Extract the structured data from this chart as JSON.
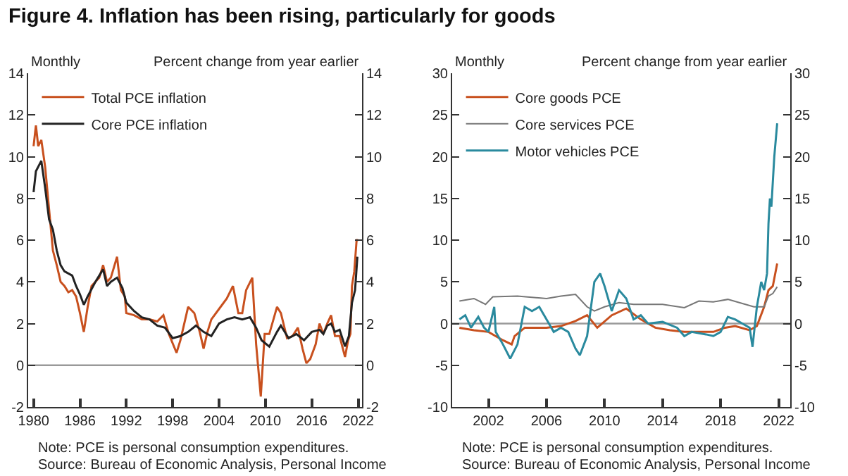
{
  "chart_data": [
    {
      "type": "line",
      "title": "Figure 4. Inflation has been rising, particularly for goods",
      "legend": "top left",
      "annotations": [
        "Monthly",
        "Percent change from year earlier",
        "Note: PCE is personal consumption expenditures.",
        "Source: Bureau of Economic Analysis, Personal Income"
      ],
      "xlim": [
        1979.3,
        2022.5
      ],
      "xticks": [
        1980,
        1986,
        1992,
        1998,
        2004,
        2010,
        2016,
        2022
      ],
      "ylim": [
        -2,
        14
      ],
      "yticks": [
        -2,
        0,
        2,
        4,
        6,
        8,
        10,
        12,
        14
      ],
      "y2lim": [
        -2,
        14
      ],
      "y2ticks": [
        -2,
        0,
        2,
        4,
        6,
        8,
        10,
        12,
        14
      ],
      "ref_lines": [
        {
          "axis": "y",
          "value": 0,
          "color": "#999999"
        }
      ],
      "series": [
        {
          "name": "Total PCE inflation",
          "color": "#c8501e",
          "x": [
            1980.0,
            1980.3,
            1980.6,
            1981,
            1981.5,
            1982,
            1982.5,
            1983,
            1983.5,
            1984,
            1984.5,
            1985,
            1985.5,
            1986,
            1986.5,
            1987,
            1987.5,
            1988,
            1988.5,
            1989,
            1989.5,
            1990,
            1990.8,
            1991.3,
            1991.8,
            1992,
            1993,
            1994,
            1995,
            1996,
            1996.8,
            1997.5,
            1998.5,
            1999,
            2000,
            2000.8,
            2001.5,
            2002,
            2002.5,
            2003,
            2004,
            2005,
            2005.8,
            2006.5,
            2007,
            2007.5,
            2008.3,
            2008.8,
            2009.4,
            2009.9,
            2010.5,
            2011.5,
            2012,
            2012.8,
            2013.5,
            2014.2,
            2014.8,
            2015.3,
            2015.8,
            2016.5,
            2017,
            2017.5,
            2018,
            2018.5,
            2019,
            2019.6,
            2020.3,
            2020.7,
            2021,
            2021.2,
            2021.5,
            2021.8,
            2022
          ],
          "values": [
            10.5,
            11.5,
            10.5,
            10.8,
            9.5,
            7.5,
            5.5,
            4.8,
            4.0,
            3.8,
            3.5,
            3.6,
            3.3,
            2.5,
            1.6,
            2.8,
            3.8,
            4.0,
            4.2,
            4.8,
            4.0,
            4.2,
            5.2,
            3.6,
            3.3,
            2.5,
            2.4,
            2.2,
            2.2,
            2.1,
            2.4,
            1.5,
            0.6,
            1.2,
            2.8,
            2.5,
            1.6,
            0.8,
            1.6,
            2.2,
            2.7,
            3.2,
            3.8,
            2.5,
            2.5,
            3.6,
            4.2,
            1.0,
            -1.5,
            1.5,
            1.5,
            2.8,
            2.5,
            1.3,
            1.4,
            1.8,
            0.8,
            0.1,
            0.3,
            1.0,
            2.0,
            1.5,
            2.0,
            2.4,
            1.4,
            1.4,
            0.4,
            1.2,
            1.5,
            3.8,
            4.5,
            6.0,
            6.0
          ]
        },
        {
          "name": "Core PCE inflation",
          "color": "#222222",
          "x": [
            1980,
            1980.3,
            1981,
            1981.5,
            1982,
            1982.5,
            1983,
            1983.5,
            1984,
            1985,
            1985.5,
            1986,
            1986.5,
            1987,
            1988,
            1988.5,
            1989,
            1989.5,
            1990,
            1990.8,
            1991.5,
            1992,
            1993,
            1994,
            1995,
            1996,
            1997,
            1998,
            1999,
            2000,
            2001,
            2002,
            2003,
            2004,
            2005,
            2006,
            2007,
            2008,
            2008.8,
            2009.5,
            2010.5,
            2011.5,
            2012,
            2013,
            2014,
            2015,
            2016,
            2017,
            2017.5,
            2018,
            2018.5,
            2019,
            2019.6,
            2020.3,
            2020.8,
            2021.2,
            2021.6,
            2021.9
          ],
          "values": [
            8.3,
            9.3,
            9.8,
            8.5,
            7.0,
            6.5,
            5.5,
            4.8,
            4.5,
            4.3,
            3.8,
            3.4,
            2.9,
            3.3,
            4.0,
            4.3,
            4.6,
            3.8,
            4.0,
            4.2,
            3.7,
            3.0,
            2.6,
            2.3,
            2.2,
            1.9,
            1.8,
            1.3,
            1.4,
            1.6,
            1.9,
            1.6,
            1.4,
            2.0,
            2.2,
            2.3,
            2.2,
            2.3,
            1.8,
            1.2,
            0.9,
            1.6,
            1.9,
            1.3,
            1.5,
            1.2,
            1.6,
            1.7,
            1.5,
            1.9,
            2.0,
            1.6,
            1.7,
            0.9,
            1.4,
            3.0,
            3.6,
            5.2
          ]
        }
      ]
    },
    {
      "type": "line",
      "legend": "top left",
      "annotations": [
        "Monthly",
        "Percent change from year earlier",
        "Note: PCE is personal consumption expenditures.",
        "Source: Bureau of Economic Analysis, Personal Income"
      ],
      "xlim": [
        1999.5,
        2022.8
      ],
      "xticks": [
        2002,
        2006,
        2010,
        2014,
        2018,
        2022
      ],
      "ylim": [
        -10,
        30
      ],
      "yticks": [
        -10,
        -5,
        0,
        5,
        10,
        15,
        20,
        25,
        30
      ],
      "y2lim": [
        -10,
        30
      ],
      "y2ticks": [
        -10,
        -5,
        0,
        5,
        10,
        15,
        20,
        25,
        30
      ],
      "ref_lines": [
        {
          "axis": "y",
          "value": 0,
          "color": "#999999"
        }
      ],
      "series": [
        {
          "name": "Core goods PCE",
          "color": "#c8501e",
          "x": [
            2000,
            2001,
            2002,
            2003,
            2003.6,
            2003.8,
            2004.5,
            2006,
            2007,
            2008,
            2008.8,
            2009.5,
            2010.5,
            2011.5,
            2012.5,
            2013.5,
            2014.5,
            2015.5,
            2016.5,
            2017.5,
            2018.3,
            2019,
            2020,
            2020.5,
            2021,
            2021.3,
            2021.6,
            2021.9
          ],
          "values": [
            -0.5,
            -0.8,
            -1.0,
            -2.0,
            -2.5,
            -1.5,
            -0.5,
            -0.5,
            -0.3,
            0.3,
            1.0,
            -0.5,
            1.0,
            1.8,
            0.5,
            -0.5,
            -0.8,
            -1.0,
            -1.0,
            -1.0,
            -0.5,
            -0.3,
            -0.8,
            -0.3,
            2.0,
            4.0,
            4.5,
            7.2
          ]
        },
        {
          "name": "Core services PCE",
          "color": "#777777",
          "x": [
            2000,
            2001,
            2001.8,
            2002.3,
            2004,
            2006,
            2007,
            2008,
            2008.8,
            2009.3,
            2010,
            2011,
            2012,
            2014,
            2015.5,
            2016.5,
            2017.5,
            2018.5,
            2019.5,
            2020.3,
            2021,
            2021.3,
            2021.6,
            2021.9
          ],
          "values": [
            2.7,
            3.0,
            2.3,
            3.2,
            3.3,
            3.0,
            3.3,
            3.5,
            2.0,
            1.5,
            2.0,
            2.5,
            2.3,
            2.3,
            1.9,
            2.7,
            2.6,
            2.9,
            2.4,
            2.0,
            2.0,
            3.3,
            3.6,
            4.4
          ]
        },
        {
          "name": "Motor vehicles PCE",
          "color": "#2a8a9e",
          "x": [
            2000,
            2000.4,
            2000.8,
            2001.3,
            2001.7,
            2002,
            2002.4,
            2002.5,
            2003,
            2003.5,
            2004,
            2004.5,
            2005,
            2005.5,
            2006,
            2006.5,
            2007,
            2007.5,
            2008,
            2008.3,
            2008.8,
            2009.3,
            2009.7,
            2010,
            2010.5,
            2011,
            2011.5,
            2012,
            2012.5,
            2013,
            2014,
            2015,
            2015.5,
            2016,
            2017,
            2017.5,
            2018,
            2018.5,
            2019,
            2019.5,
            2020,
            2020.2,
            2020.5,
            2020.8,
            2021,
            2021.2,
            2021.3,
            2021.4,
            2021.5,
            2021.7,
            2021.9
          ],
          "values": [
            0.5,
            1.0,
            -0.5,
            0.8,
            -0.5,
            -1.0,
            2.0,
            -1.0,
            -2.5,
            -4.2,
            -2.5,
            2.0,
            1.5,
            2.0,
            0.5,
            -1.0,
            -0.5,
            -1.0,
            -3.0,
            -3.8,
            -1.5,
            5.0,
            6.0,
            4.5,
            1.5,
            4.0,
            3.0,
            0.5,
            1.0,
            0.0,
            0.2,
            -0.5,
            -1.5,
            -1.0,
            -1.3,
            -1.5,
            -1.0,
            0.8,
            0.5,
            0.0,
            -0.5,
            -2.8,
            2.0,
            5.0,
            4.0,
            6.0,
            12,
            15,
            14,
            20,
            24
          ]
        }
      ]
    }
  ]
}
